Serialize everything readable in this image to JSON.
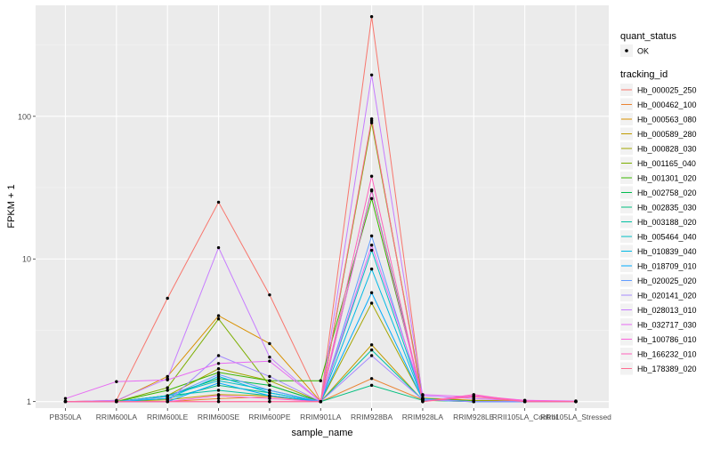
{
  "chart_data": {
    "type": "line",
    "xlabel": "sample_name",
    "ylabel": "FPKM + 1",
    "y_scale": "log10",
    "ylim": [
      0.9,
      600
    ],
    "y_ticks": [
      {
        "value": 1,
        "label": "1"
      },
      {
        "value": 10,
        "label": "10"
      },
      {
        "value": 100,
        "label": "100"
      }
    ],
    "categories": [
      "PB350LA",
      "RRIM600LA",
      "RRIM600LE",
      "RRIM600SE",
      "RRIM600PE",
      "RRIM901LA",
      "RRIM928BA",
      "RRIM928LA",
      "RRIM928LE",
      "RRII105LA_Control",
      "RRII105LA_Stressed"
    ],
    "legend": {
      "position": "right",
      "quant_status": {
        "title": "quant_status",
        "entries": [
          "OK"
        ]
      },
      "tracking_title": "tracking_id"
    },
    "grid": true,
    "series": [
      {
        "name": "Hb_000025_250",
        "color": "#F8766D",
        "values": [
          1.0,
          1.02,
          5.3,
          25.0,
          5.6,
          1.0,
          500,
          1.05,
          1.02,
          1.01,
          1.0
        ]
      },
      {
        "name": "Hb_000462_100",
        "color": "#EA8331",
        "values": [
          1.0,
          1.0,
          1.0,
          1.05,
          1.08,
          1.0,
          1.45,
          1.03,
          1.01,
          1.0,
          1.0
        ]
      },
      {
        "name": "Hb_000563_080",
        "color": "#D89000",
        "values": [
          1.0,
          1.01,
          1.5,
          4.0,
          2.55,
          1.0,
          93,
          1.06,
          1.02,
          1.01,
          1.0
        ]
      },
      {
        "name": "Hb_000589_280",
        "color": "#C09B00",
        "values": [
          1.0,
          1.0,
          1.03,
          1.12,
          1.1,
          1.0,
          2.5,
          1.02,
          1.0,
          1.0,
          1.0
        ]
      },
      {
        "name": "Hb_000828_030",
        "color": "#A3A500",
        "values": [
          1.0,
          1.0,
          1.1,
          1.7,
          1.4,
          1.0,
          4.9,
          1.04,
          1.01,
          1.0,
          1.0
        ]
      },
      {
        "name": "Hb_001165_040",
        "color": "#7CAE00",
        "values": [
          1.0,
          1.0,
          1.25,
          3.8,
          1.3,
          1.0,
          90,
          1.05,
          1.01,
          1.0,
          1.0
        ]
      },
      {
        "name": "Hb_001301_020",
        "color": "#39B600",
        "values": [
          1.0,
          1.0,
          1.2,
          1.6,
          1.4,
          1.4,
          26.5,
          1.05,
          1.01,
          1.0,
          1.0
        ]
      },
      {
        "name": "Hb_002758_020",
        "color": "#00BB4E",
        "values": [
          1.0,
          1.0,
          1.1,
          1.45,
          1.3,
          1.0,
          30.5,
          1.04,
          1.0,
          1.0,
          1.0
        ]
      },
      {
        "name": "Hb_002835_030",
        "color": "#00BF7D",
        "values": [
          1.0,
          1.0,
          1.05,
          1.3,
          1.15,
          1.0,
          1.3,
          1.02,
          1.0,
          1.0,
          1.0
        ]
      },
      {
        "name": "Hb_003188_020",
        "color": "#00C1A3",
        "values": [
          1.0,
          1.0,
          1.1,
          1.2,
          1.1,
          1.0,
          2.3,
          1.03,
          1.0,
          1.0,
          1.0
        ]
      },
      {
        "name": "Hb_005464_040",
        "color": "#00BFC4",
        "values": [
          1.0,
          1.0,
          1.1,
          1.4,
          1.2,
          1.0,
          11.5,
          1.05,
          1.0,
          1.0,
          1.0
        ]
      },
      {
        "name": "Hb_010839_040",
        "color": "#00B8E5",
        "values": [
          1.0,
          1.0,
          1.05,
          1.5,
          1.15,
          1.0,
          8.5,
          1.04,
          1.0,
          1.0,
          1.0
        ]
      },
      {
        "name": "Hb_018709_010",
        "color": "#00ABFD",
        "values": [
          1.0,
          1.0,
          1.0,
          1.35,
          1.1,
          1.0,
          5.8,
          1.03,
          1.0,
          1.0,
          1.0
        ]
      },
      {
        "name": "Hb_020025_020",
        "color": "#619CFF",
        "values": [
          1.0,
          1.0,
          1.08,
          1.55,
          1.2,
          1.0,
          14.5,
          1.04,
          1.0,
          1.0,
          1.0
        ]
      },
      {
        "name": "Hb_020141_020",
        "color": "#A58AFF",
        "values": [
          1.0,
          1.0,
          1.0,
          2.1,
          1.5,
          1.0,
          2.1,
          1.03,
          1.0,
          1.0,
          1.0
        ]
      },
      {
        "name": "Hb_028013_010",
        "color": "#C77CFF",
        "values": [
          1.0,
          1.02,
          1.45,
          12.0,
          2.05,
          1.0,
          195,
          1.1,
          1.05,
          1.01,
          1.0
        ]
      },
      {
        "name": "Hb_032717_030",
        "color": "#E76BF3",
        "values": [
          1.05,
          1.38,
          1.42,
          1.85,
          1.92,
          1.0,
          12.5,
          1.12,
          1.08,
          1.02,
          1.01
        ]
      },
      {
        "name": "Hb_100786_010",
        "color": "#FA62DB",
        "values": [
          1.0,
          1.0,
          1.0,
          1.1,
          1.05,
          1.0,
          30.0,
          1.0,
          1.1,
          1.02,
          1.0
        ]
      },
      {
        "name": "Hb_166232_010",
        "color": "#FF62BC",
        "values": [
          1.0,
          1.0,
          1.0,
          1.0,
          1.0,
          1.0,
          38.0,
          1.0,
          1.12,
          1.0,
          1.0
        ]
      },
      {
        "name": "Hb_178389_020",
        "color": "#FF6C91",
        "values": [
          1.0,
          1.0,
          1.0,
          1.0,
          1.0,
          1.0,
          96.0,
          1.0,
          1.08,
          1.0,
          1.0
        ]
      }
    ]
  }
}
